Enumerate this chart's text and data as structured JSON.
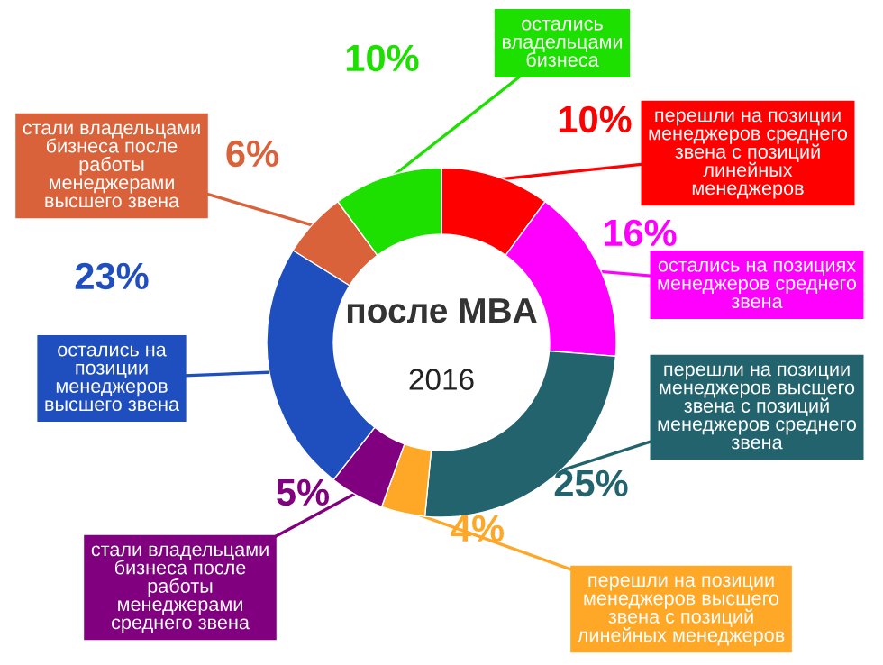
{
  "chart_data": {
    "type": "donut",
    "title": "после MBA",
    "annotations": [
      "2016"
    ],
    "categories": [
      "перешли на позиции\nменеджеров среднего\nзвена с позиций\nлинейных\nменеджеров",
      "остались на позициях\nменеджеров среднего\nзвена",
      "перешли на позиции\nменеджеров высшего\nзвена с позиций\nменеджеров среднего\nзвена",
      "перешли на позиции\nменеджеров высшего\nзвена с позиций\nлинейных менеджеров",
      "стали владельцами\nбизнеса после\nработы\nменеджерами\nсреднего звена",
      "остались на\nпозиции\nменеджеров\nвысшего звена",
      "стали владельцами\nбизнеса после\nработы\nменеджерами\nвысшего звена",
      "остались\nвладельцами\nбизнеса"
    ],
    "values": [
      10,
      16,
      25,
      4,
      5,
      23,
      6,
      10
    ],
    "value_labels": [
      "10%",
      "16%",
      "25%",
      "4%",
      "5%",
      "23%",
      "6%",
      "10%"
    ],
    "colors": [
      "#ff0000",
      "#ff00ff",
      "#22636e",
      "#ffa726",
      "#800080",
      "#1f4fbf",
      "#d9623b",
      "#1ee000"
    ]
  }
}
